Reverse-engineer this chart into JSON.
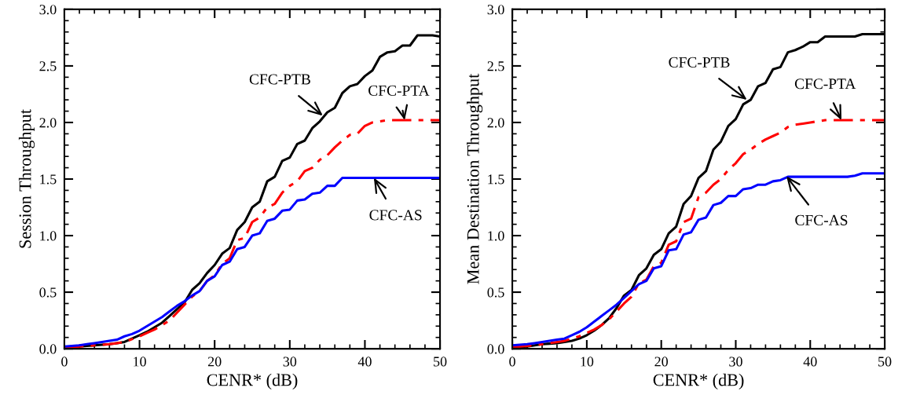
{
  "chart_data": [
    {
      "type": "line",
      "xlabel": "CENR* (dB)",
      "ylabel": "Session Throughput",
      "x": [
        0,
        1,
        2,
        3,
        4,
        5,
        6,
        7,
        8,
        9,
        10,
        11,
        12,
        13,
        14,
        15,
        16,
        17,
        18,
        19,
        20,
        21,
        22,
        23,
        24,
        25,
        26,
        27,
        28,
        29,
        30,
        31,
        32,
        33,
        34,
        35,
        36,
        37,
        38,
        39,
        40,
        41,
        42,
        43,
        44,
        45,
        46,
        47,
        48,
        49,
        50
      ],
      "series": [
        {
          "color": "#000000",
          "line_style": "solid",
          "values": [
            0.01,
            0.015,
            0.02,
            0.025,
            0.03,
            0.035,
            0.04,
            0.05,
            0.06,
            0.09,
            0.12,
            0.15,
            0.19,
            0.23,
            0.29,
            0.35,
            0.41,
            0.52,
            0.58,
            0.67,
            0.74,
            0.84,
            0.89,
            1.05,
            1.12,
            1.25,
            1.3,
            1.48,
            1.52,
            1.66,
            1.69,
            1.81,
            1.84,
            1.95,
            2.01,
            2.09,
            2.13,
            2.26,
            2.32,
            2.34,
            2.41,
            2.46,
            2.58,
            2.62,
            2.63,
            2.68,
            2.68,
            2.77,
            2.77,
            2.77,
            2.76
          ]
        },
        {
          "color": "#ff0000",
          "line_style": "dashdot",
          "values": [
            0.01,
            0.015,
            0.02,
            0.025,
            0.03,
            0.035,
            0.04,
            0.05,
            0.06,
            0.085,
            0.11,
            0.14,
            0.17,
            0.21,
            0.25,
            0.32,
            0.39,
            0.46,
            0.51,
            0.6,
            0.65,
            0.75,
            0.8,
            0.96,
            0.98,
            1.12,
            1.16,
            1.25,
            1.28,
            1.38,
            1.44,
            1.48,
            1.57,
            1.6,
            1.67,
            1.71,
            1.78,
            1.84,
            1.89,
            1.9,
            1.97,
            2.0,
            2.01,
            2.02,
            2.02,
            2.02,
            2.02,
            2.02,
            2.02,
            2.02,
            2.02
          ]
        },
        {
          "color": "#0000ff",
          "line_style": "solid",
          "values": [
            0.02,
            0.025,
            0.03,
            0.04,
            0.05,
            0.06,
            0.07,
            0.08,
            0.11,
            0.13,
            0.16,
            0.2,
            0.24,
            0.28,
            0.33,
            0.38,
            0.42,
            0.47,
            0.51,
            0.6,
            0.64,
            0.74,
            0.77,
            0.88,
            0.9,
            1.0,
            1.02,
            1.13,
            1.15,
            1.22,
            1.23,
            1.31,
            1.32,
            1.37,
            1.38,
            1.44,
            1.44,
            1.51,
            1.51,
            1.51,
            1.51,
            1.51,
            1.51,
            1.51,
            1.51,
            1.51,
            1.51,
            1.51,
            1.51,
            1.51,
            1.51
          ]
        }
      ],
      "annotations": [
        {
          "text": "CFC-PTB",
          "x": 34.4,
          "y": 2.06
        },
        {
          "text": "CFC-PTA",
          "x": 45.3,
          "y": 2.02
        },
        {
          "text": "CFC-AS",
          "x": 41.2,
          "y": 1.51
        }
      ],
      "xlim": [
        0,
        50
      ],
      "xticks": [
        0,
        10,
        20,
        30,
        40,
        50
      ],
      "ylim": [
        0,
        3
      ],
      "yticks": [
        {
          "value": 0,
          "label": "0.0"
        },
        {
          "value": 0.5,
          "label": "0.5"
        },
        {
          "value": 1,
          "label": "1.0"
        },
        {
          "value": 1.5,
          "label": "1.5"
        },
        {
          "value": 2,
          "label": "2.0"
        },
        {
          "value": 2.5,
          "label": "2.5"
        },
        {
          "value": 3,
          "label": "3.0"
        }
      ],
      "grid": false
    },
    {
      "type": "line",
      "xlabel": "CENR* (dB)",
      "ylabel": "Mean Destination Throughput",
      "x": [
        0,
        1,
        2,
        3,
        4,
        5,
        6,
        7,
        8,
        9,
        10,
        11,
        12,
        13,
        14,
        15,
        16,
        17,
        18,
        19,
        20,
        21,
        22,
        23,
        24,
        25,
        26,
        27,
        28,
        29,
        30,
        31,
        32,
        33,
        34,
        35,
        36,
        37,
        38,
        39,
        40,
        41,
        42,
        43,
        44,
        45,
        46,
        47,
        48,
        49,
        50
      ],
      "series": [
        {
          "color": "#000000",
          "line_style": "solid",
          "values": [
            0.01,
            0.015,
            0.02,
            0.03,
            0.04,
            0.045,
            0.05,
            0.06,
            0.07,
            0.09,
            0.12,
            0.16,
            0.21,
            0.27,
            0.36,
            0.47,
            0.52,
            0.65,
            0.71,
            0.83,
            0.88,
            1.02,
            1.08,
            1.28,
            1.35,
            1.51,
            1.57,
            1.76,
            1.83,
            1.97,
            2.03,
            2.16,
            2.2,
            2.32,
            2.35,
            2.47,
            2.49,
            2.62,
            2.64,
            2.67,
            2.71,
            2.71,
            2.76,
            2.76,
            2.76,
            2.76,
            2.76,
            2.78,
            2.78,
            2.78,
            2.78
          ]
        },
        {
          "color": "#ff0000",
          "line_style": "dashdot",
          "values": [
            0.02,
            0.02,
            0.025,
            0.03,
            0.04,
            0.05,
            0.06,
            0.07,
            0.09,
            0.11,
            0.14,
            0.17,
            0.21,
            0.26,
            0.33,
            0.4,
            0.46,
            0.58,
            0.61,
            0.73,
            0.76,
            0.92,
            0.95,
            1.12,
            1.15,
            1.34,
            1.38,
            1.45,
            1.5,
            1.58,
            1.64,
            1.72,
            1.76,
            1.81,
            1.85,
            1.88,
            1.91,
            1.96,
            1.98,
            1.99,
            2.0,
            2.01,
            2.02,
            2.02,
            2.02,
            2.02,
            2.02,
            2.02,
            2.02,
            2.02,
            2.02
          ]
        },
        {
          "color": "#0000ff",
          "line_style": "solid",
          "values": [
            0.03,
            0.035,
            0.04,
            0.05,
            0.06,
            0.07,
            0.08,
            0.09,
            0.12,
            0.15,
            0.19,
            0.24,
            0.29,
            0.34,
            0.39,
            0.45,
            0.51,
            0.57,
            0.6,
            0.71,
            0.73,
            0.87,
            0.88,
            1.01,
            1.03,
            1.14,
            1.16,
            1.27,
            1.29,
            1.35,
            1.35,
            1.41,
            1.42,
            1.45,
            1.45,
            1.48,
            1.49,
            1.52,
            1.52,
            1.52,
            1.52,
            1.52,
            1.52,
            1.52,
            1.52,
            1.52,
            1.53,
            1.55,
            1.55,
            1.55,
            1.55
          ]
        }
      ],
      "annotations": [
        {
          "text": "CFC-PTB",
          "x": 31.5,
          "y": 2.2
        },
        {
          "text": "CFC-PTA",
          "x": 44.2,
          "y": 2.02
        },
        {
          "text": "CFC-AS",
          "x": 36.8,
          "y": 1.525
        }
      ],
      "xlim": [
        0,
        50
      ],
      "xticks": [
        0,
        10,
        20,
        30,
        40,
        50
      ],
      "ylim": [
        0,
        3
      ],
      "yticks": [
        {
          "value": 0,
          "label": "0.0"
        },
        {
          "value": 0.5,
          "label": "0.5"
        },
        {
          "value": 1,
          "label": "1.0"
        },
        {
          "value": 1.5,
          "label": "1.5"
        },
        {
          "value": 2,
          "label": "2.0"
        },
        {
          "value": 2.5,
          "label": "2.5"
        },
        {
          "value": 3,
          "label": "3.0"
        }
      ],
      "grid": false
    }
  ]
}
